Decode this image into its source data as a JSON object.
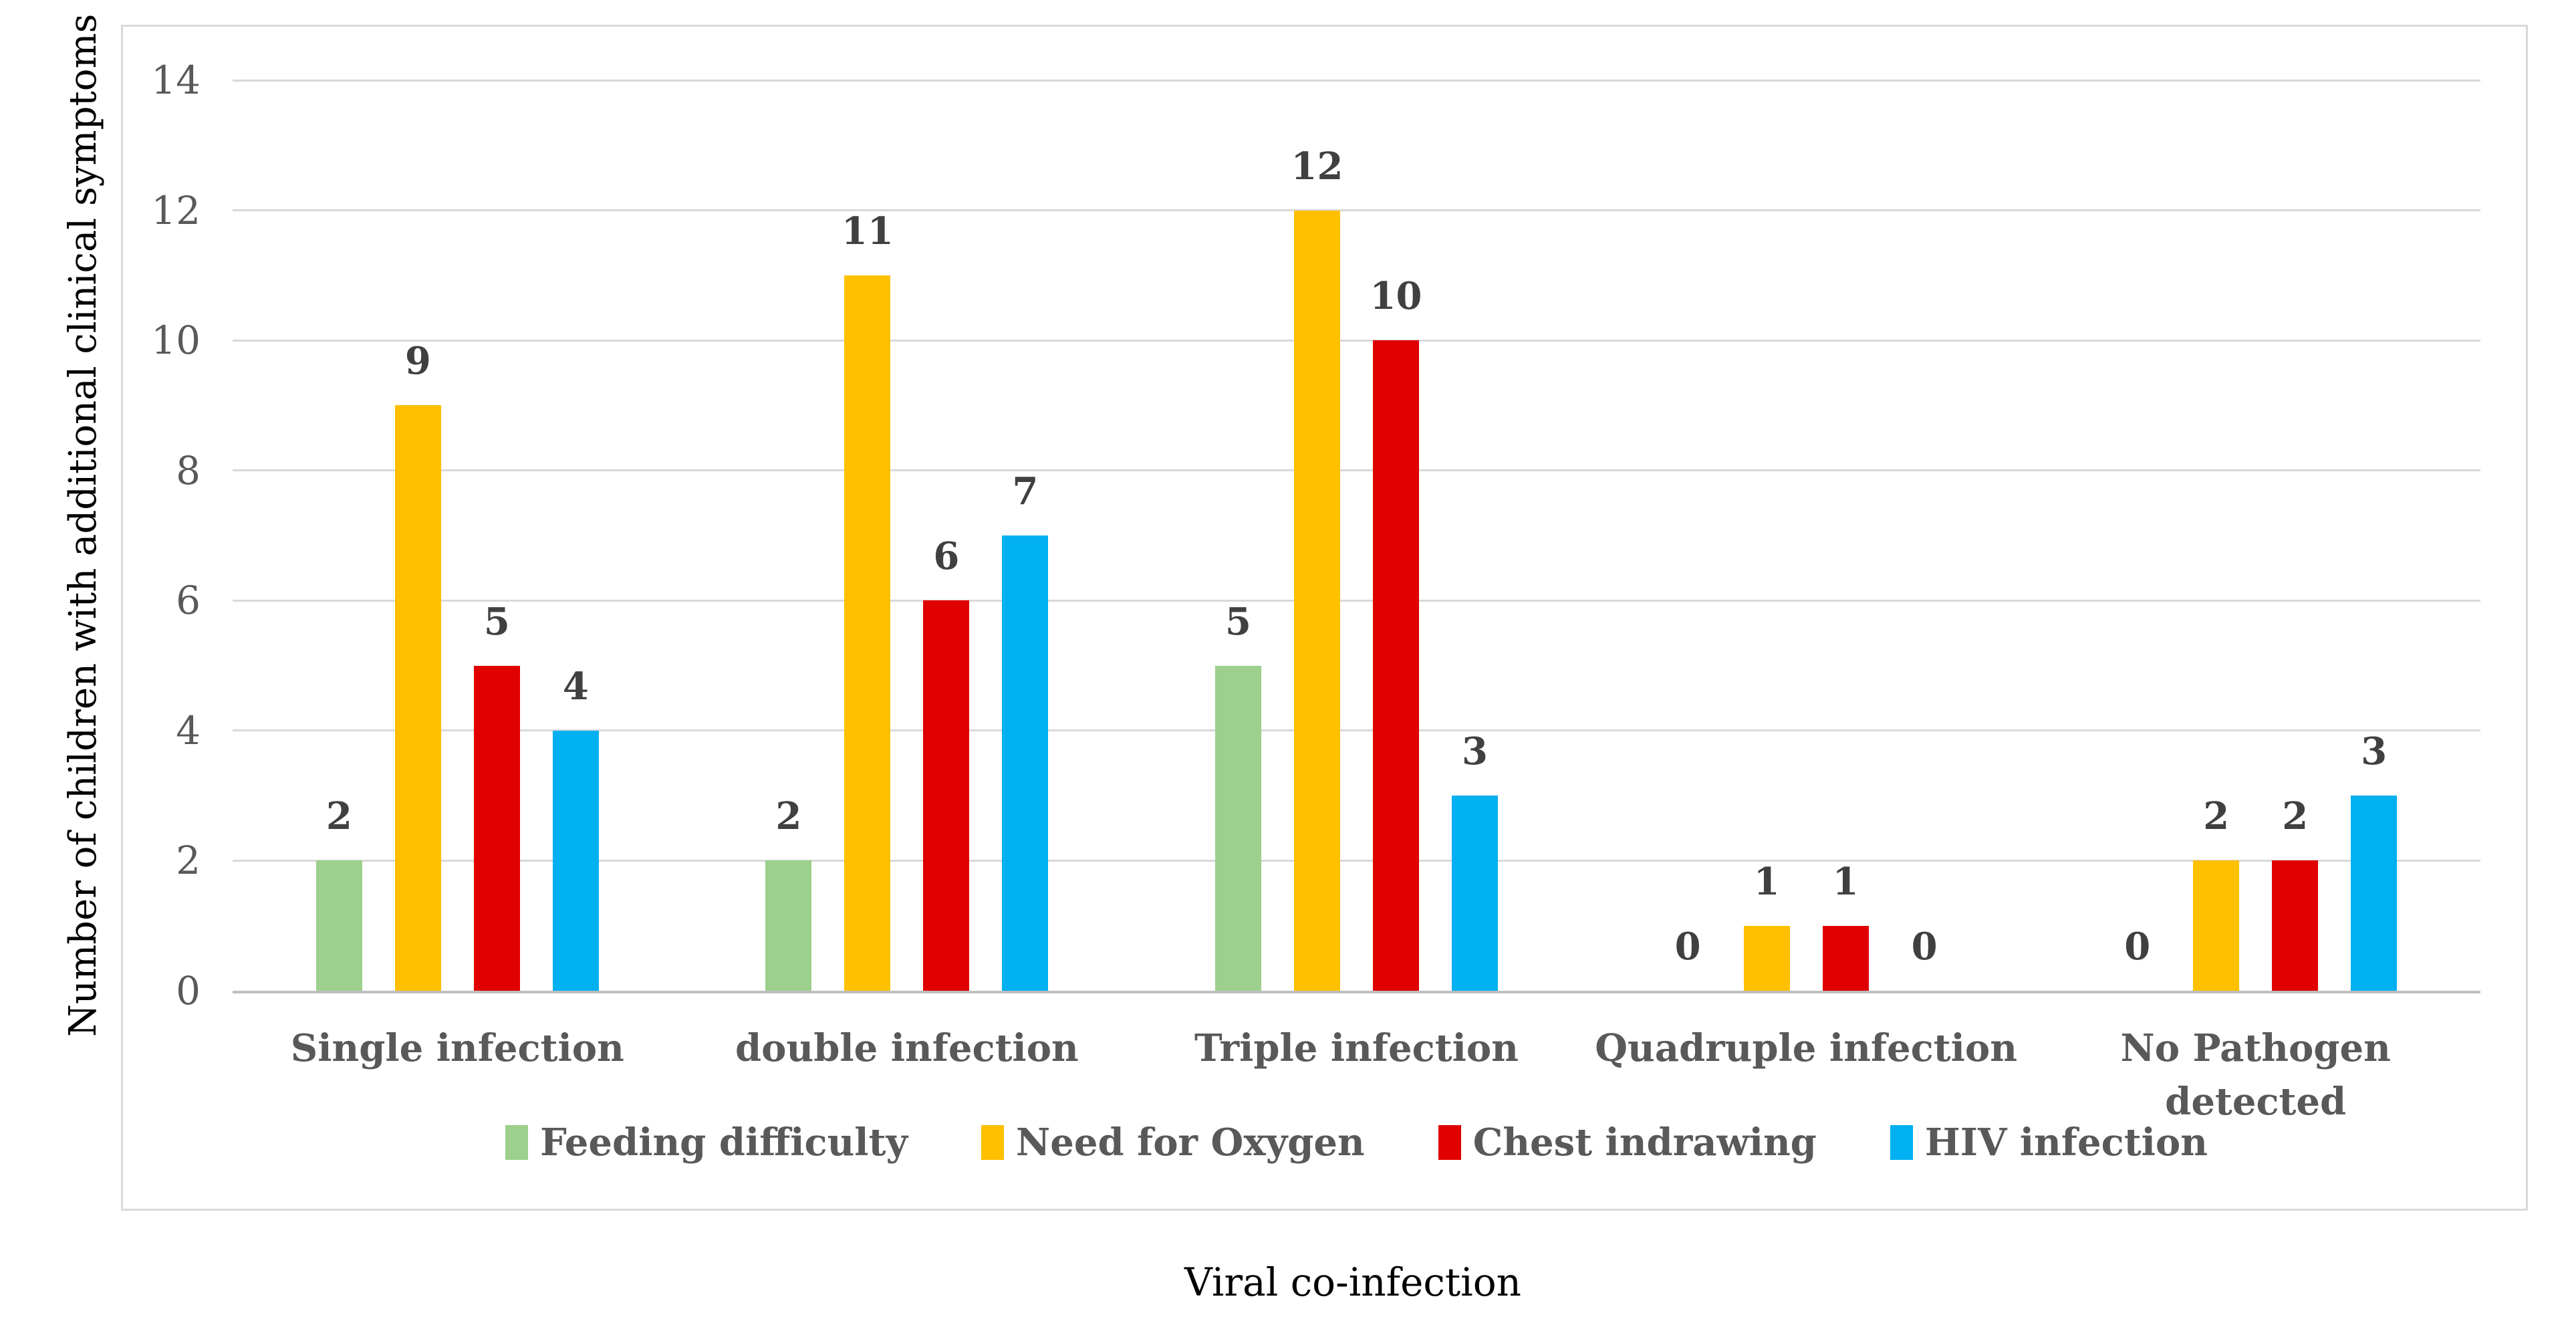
{
  "figure": {
    "x_axis_title": "Viral co-infection",
    "y_axis_title": "Number of children with additional clinical symptoms"
  },
  "chart_data": {
    "type": "bar",
    "title": "",
    "xlabel": "Viral co-infection",
    "ylabel": "Number of children with additional clinical symptoms",
    "categories": [
      "Single infection",
      "double infection",
      "Triple infection",
      "Quadruple infection",
      "No Pathogen detected"
    ],
    "series": [
      {
        "name": "Feeding difficulty",
        "color": "#9CD08C",
        "values": [
          2,
          2,
          5,
          0,
          0
        ]
      },
      {
        "name": "Need for Oxygen",
        "color": "#FFC000",
        "values": [
          9,
          11,
          12,
          1,
          2
        ]
      },
      {
        "name": "Chest indrawing",
        "color": "#E00000",
        "values": [
          5,
          6,
          10,
          1,
          2
        ]
      },
      {
        "name": "HIV infection",
        "color": "#00B0F0",
        "values": [
          4,
          7,
          3,
          0,
          3
        ]
      }
    ],
    "ylim": [
      0,
      14
    ],
    "ytick_step": 2,
    "yticks": [
      "0",
      "2",
      "4",
      "6",
      "8",
      "10",
      "12",
      "14"
    ],
    "grid": true,
    "legend_position": "bottom",
    "data_labels": true
  },
  "colors": {
    "background": "#FFFFFF",
    "chart_border": "#D9D9D9",
    "gridline": "#D9D9D9",
    "axis_line": "#BFBFBF",
    "tick_text": "#595959",
    "category_text": "#595959",
    "legend_text": "#595959",
    "data_label_text": "#404040",
    "axis_title_text": "#000000"
  }
}
